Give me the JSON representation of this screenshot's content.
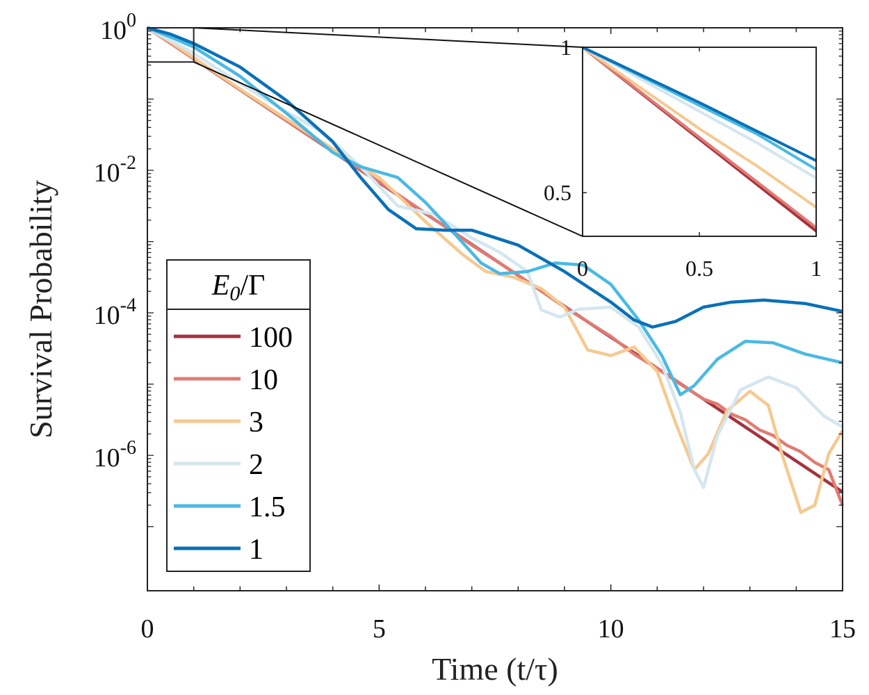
{
  "chart_data": [
    {
      "type": "line",
      "title": "",
      "xlabel": "Time (t/τ)",
      "ylabel": "Survival Probability",
      "xlim": [
        0,
        15
      ],
      "ylim_log10": [
        -7.9,
        0
      ],
      "yscale": "log",
      "x_ticks": [
        0,
        5,
        10,
        15
      ],
      "x_tick_labels": [
        "0",
        "5",
        "10",
        "15"
      ],
      "y_ticks_exp": [
        0,
        -2,
        -4,
        -6
      ],
      "y_tick_base": "10",
      "y_tick_exponents": [
        "0",
        "-2",
        "-4",
        "-6"
      ],
      "grid": false,
      "legend": {
        "position": "bottom-left",
        "title": "E0/Γ",
        "title_main": "E",
        "title_sub": "0",
        "title_rest": "/Γ"
      },
      "series": [
        {
          "name": "100",
          "color": "#a6323f",
          "points": [
            [
              0,
              0
            ],
            [
              1,
              -0.434
            ],
            [
              2,
              -0.869
            ],
            [
              3,
              -1.303
            ],
            [
              4,
              -1.737
            ],
            [
              5,
              -2.171
            ],
            [
              6,
              -2.606
            ],
            [
              7,
              -3.04
            ],
            [
              8,
              -3.474
            ],
            [
              9,
              -3.909
            ],
            [
              10,
              -4.343
            ],
            [
              11,
              -4.777
            ],
            [
              12,
              -5.212
            ],
            [
              13,
              -5.646
            ],
            [
              14,
              -6.08
            ],
            [
              15,
              -6.514
            ]
          ]
        },
        {
          "name": "10",
          "color": "#e07b72",
          "points": [
            [
              0,
              0
            ],
            [
              1,
              -0.43
            ],
            [
              2,
              -0.86
            ],
            [
              3,
              -1.3
            ],
            [
              4,
              -1.73
            ],
            [
              5,
              -2.16
            ],
            [
              6,
              -2.6
            ],
            [
              7,
              -3.05
            ],
            [
              8,
              -3.47
            ],
            [
              9,
              -3.92
            ],
            [
              10,
              -4.33
            ],
            [
              10.5,
              -4.58
            ],
            [
              11,
              -4.78
            ],
            [
              11.5,
              -5.0
            ],
            [
              12,
              -5.21
            ],
            [
              12.3,
              -5.28
            ],
            [
              12.6,
              -5.42
            ],
            [
              12.9,
              -5.5
            ],
            [
              13.2,
              -5.64
            ],
            [
              13.5,
              -5.72
            ],
            [
              13.8,
              -5.86
            ],
            [
              14.1,
              -5.95
            ],
            [
              14.4,
              -6.1
            ],
            [
              14.7,
              -6.2
            ],
            [
              15,
              -6.7
            ]
          ]
        },
        {
          "name": "3",
          "color": "#f5c990",
          "points": [
            [
              0,
              0
            ],
            [
              0.5,
              -0.2
            ],
            [
              1,
              -0.42
            ],
            [
              2,
              -0.86
            ],
            [
              3,
              -1.28
            ],
            [
              4,
              -1.7
            ],
            [
              5,
              -2.1
            ],
            [
              6,
              -2.72
            ],
            [
              6.8,
              -3.18
            ],
            [
              7.3,
              -3.42
            ],
            [
              7.9,
              -3.5
            ],
            [
              8.5,
              -3.66
            ],
            [
              9,
              -3.92
            ],
            [
              9.5,
              -4.52
            ],
            [
              10,
              -4.6
            ],
            [
              10.5,
              -4.48
            ],
            [
              11,
              -4.82
            ],
            [
              11.4,
              -5.55
            ],
            [
              11.8,
              -6.2
            ],
            [
              12.1,
              -5.98
            ],
            [
              12.5,
              -5.38
            ],
            [
              13,
              -5.1
            ],
            [
              13.4,
              -5.3
            ],
            [
              13.7,
              -6.0
            ],
            [
              14.1,
              -6.8
            ],
            [
              14.4,
              -6.7
            ],
            [
              14.7,
              -5.98
            ],
            [
              15,
              -5.65
            ]
          ]
        },
        {
          "name": "2",
          "color": "#d4e6ee",
          "points": [
            [
              0,
              0
            ],
            [
              0.5,
              -0.18
            ],
            [
              1,
              -0.36
            ],
            [
              2,
              -0.78
            ],
            [
              3,
              -1.18
            ],
            [
              3.8,
              -1.47
            ],
            [
              4.6,
              -1.95
            ],
            [
              5.4,
              -2.5
            ],
            [
              6.2,
              -2.62
            ],
            [
              7,
              -2.95
            ],
            [
              7.6,
              -3.15
            ],
            [
              8.2,
              -3.42
            ],
            [
              8.5,
              -3.96
            ],
            [
              8.9,
              -4.06
            ],
            [
              9.3,
              -3.95
            ],
            [
              10,
              -3.92
            ],
            [
              10.6,
              -4.2
            ],
            [
              11.1,
              -4.72
            ],
            [
              11.5,
              -5.4
            ],
            [
              11.8,
              -6.2
            ],
            [
              12,
              -6.45
            ],
            [
              12.3,
              -5.72
            ],
            [
              12.8,
              -5.08
            ],
            [
              13.4,
              -4.9
            ],
            [
              14,
              -5.05
            ],
            [
              14.6,
              -5.45
            ],
            [
              15,
              -5.6
            ]
          ]
        },
        {
          "name": "1.5",
          "color": "#4ab9e4",
          "points": [
            [
              0,
              0
            ],
            [
              0.5,
              -0.13
            ],
            [
              1,
              -0.27
            ],
            [
              2,
              -0.68
            ],
            [
              3,
              -1.2
            ],
            [
              4,
              -1.75
            ],
            [
              4.6,
              -1.95
            ],
            [
              5.4,
              -2.1
            ],
            [
              6,
              -2.45
            ],
            [
              6.6,
              -2.87
            ],
            [
              7.2,
              -3.3
            ],
            [
              7.6,
              -3.45
            ],
            [
              8.2,
              -3.42
            ],
            [
              8.8,
              -3.3
            ],
            [
              9.4,
              -3.33
            ],
            [
              10,
              -3.6
            ],
            [
              10.6,
              -4.1
            ],
            [
              11.1,
              -4.6
            ],
            [
              11.5,
              -5.15
            ],
            [
              11.8,
              -5.02
            ],
            [
              12.3,
              -4.65
            ],
            [
              12.9,
              -4.4
            ],
            [
              13.5,
              -4.42
            ],
            [
              14.2,
              -4.58
            ],
            [
              15,
              -4.7
            ]
          ]
        },
        {
          "name": "1",
          "color": "#0a70b8",
          "points": [
            [
              0,
              0
            ],
            [
              0.5,
              -0.09
            ],
            [
              1,
              -0.22
            ],
            [
              2,
              -0.55
            ],
            [
              3,
              -1.02
            ],
            [
              4,
              -1.6
            ],
            [
              4.6,
              -2.1
            ],
            [
              5.2,
              -2.55
            ],
            [
              5.8,
              -2.82
            ],
            [
              6.4,
              -2.84
            ],
            [
              7,
              -2.84
            ],
            [
              8,
              -3.05
            ],
            [
              9,
              -3.42
            ],
            [
              10,
              -3.85
            ],
            [
              10.5,
              -4.1
            ],
            [
              10.9,
              -4.2
            ],
            [
              11.4,
              -4.12
            ],
            [
              12,
              -3.92
            ],
            [
              12.6,
              -3.85
            ],
            [
              13.3,
              -3.82
            ],
            [
              14.2,
              -3.87
            ],
            [
              15,
              -3.98
            ]
          ]
        }
      ],
      "zoom_box": {
        "x": [
          0,
          1
        ],
        "y_log10": [
          -0.48,
          0
        ]
      }
    },
    {
      "type": "line",
      "title": "",
      "xlabel": "",
      "ylabel": "",
      "xlim": [
        0,
        1
      ],
      "ylim": [
        0.35,
        1
      ],
      "x_ticks": [
        0,
        0.5,
        1
      ],
      "x_tick_labels": [
        "0",
        "0.5",
        "1"
      ],
      "y_ticks": [
        0.5,
        1
      ],
      "y_tick_labels": [
        "0.5",
        "1"
      ],
      "grid": false,
      "series": [
        {
          "name": "100",
          "color": "#a6323f",
          "points": [
            [
              0,
              1
            ],
            [
              1,
              0.368
            ]
          ]
        },
        {
          "name": "10",
          "color": "#e07b72",
          "points": [
            [
              0,
              1
            ],
            [
              0.5,
              0.69
            ],
            [
              1,
              0.38
            ]
          ]
        },
        {
          "name": "3",
          "color": "#f5c990",
          "points": [
            [
              0,
              1
            ],
            [
              0.25,
              0.86
            ],
            [
              0.5,
              0.72
            ],
            [
              0.75,
              0.59
            ],
            [
              1,
              0.45
            ]
          ]
        },
        {
          "name": "2",
          "color": "#d4e6ee",
          "points": [
            [
              0,
              1
            ],
            [
              0.25,
              0.89
            ],
            [
              0.5,
              0.78
            ],
            [
              0.75,
              0.67
            ],
            [
              1,
              0.55
            ]
          ]
        },
        {
          "name": "1.5",
          "color": "#4ab9e4",
          "points": [
            [
              0,
              1
            ],
            [
              0.25,
              0.9
            ],
            [
              0.5,
              0.8
            ],
            [
              0.75,
              0.7
            ],
            [
              1,
              0.58
            ]
          ]
        },
        {
          "name": "1",
          "color": "#0a70b8",
          "points": [
            [
              0,
              1
            ],
            [
              0.25,
              0.905
            ],
            [
              0.5,
              0.81
            ],
            [
              0.75,
              0.71
            ],
            [
              1,
              0.61
            ]
          ]
        }
      ]
    }
  ]
}
